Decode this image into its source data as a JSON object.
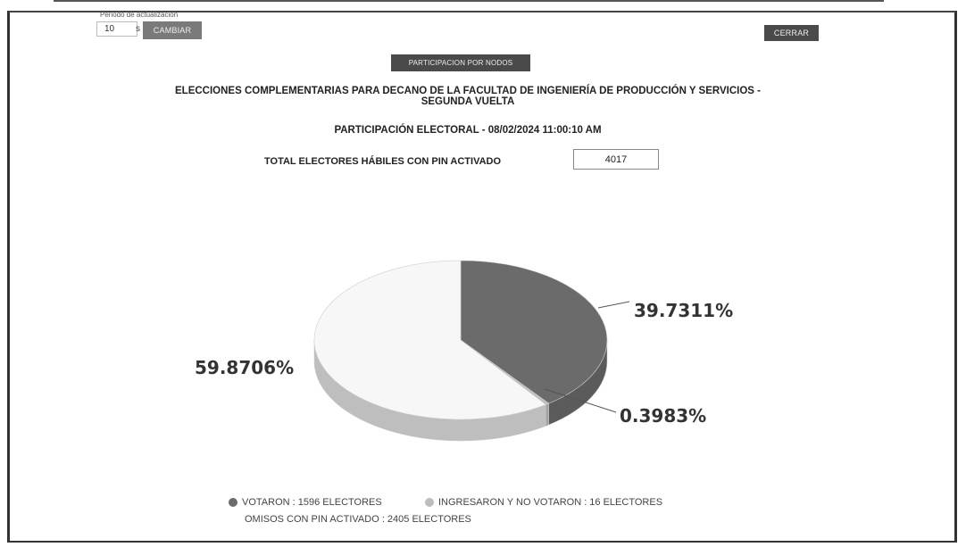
{
  "refresh": {
    "label": "Periodo de actualización",
    "value": "10",
    "unit": "s",
    "button_label": "CAMBIAR"
  },
  "close_label": "CERRAR",
  "participation_button_label": "PARTICIPACION POR NODOS",
  "header": {
    "title_line1": "ELECCIONES COMPLEMENTARIAS PARA DECANO DE LA FACULTAD DE INGENIERÍA DE PRODUCCIÓN Y SERVICIOS -",
    "title_line2": "SEGUNDA VUELTA",
    "subtitle": "PARTICIPACIÓN ELECTORAL - 08/02/2024 11:00:10 AM",
    "total_label": "TOTAL ELECTORES HÁBILES CON PIN ACTIVADO",
    "total_value": "4017"
  },
  "chart_data": {
    "type": "pie",
    "three_d": true,
    "series": [
      {
        "name": "VOTARON",
        "count_label": "1596 ELECTORES",
        "value": 39.7311,
        "label": "39.7311%",
        "color": "#6b6b6b"
      },
      {
        "name": "INGRESARON Y NO VOTARON",
        "count_label": "16 ELECTORES",
        "value": 0.3983,
        "label": "0.3983%",
        "color": "#bdbdbd"
      },
      {
        "name": "OMISOS CON PIN ACTIVADO",
        "count_label": "2405 ELECTORES",
        "value": 59.8706,
        "label": "59.8706%",
        "color": "#f7f7f7"
      }
    ],
    "legend_position": "bottom"
  },
  "legend": {
    "item1": "VOTARON : 1596 ELECTORES",
    "item2": "INGRESARON Y NO VOTARON : 16 ELECTORES",
    "item3": "OMISOS CON PIN ACTIVADO : 2405 ELECTORES"
  }
}
